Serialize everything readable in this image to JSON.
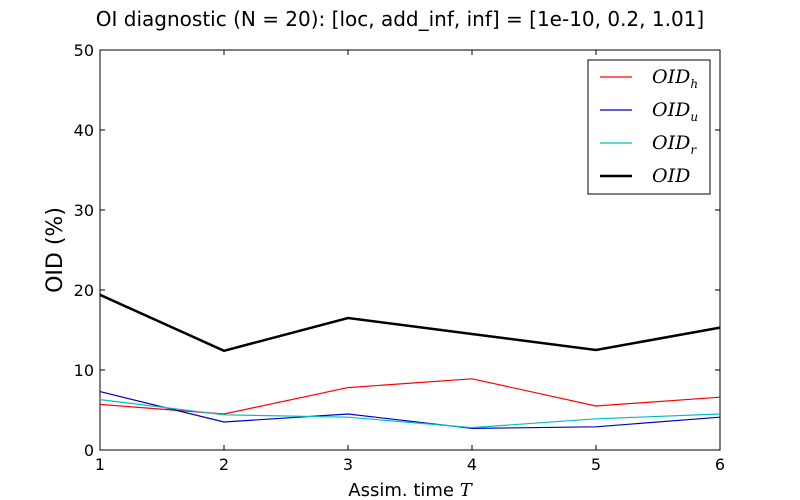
{
  "chart_data": {
    "type": "line",
    "title": "OI diagnostic  (N = 20): [loc, add_inf, inf] = [1e-10, 0.2, 1.01]",
    "xlabel": "Assim. time",
    "xlabel_var": "T",
    "ylabel": "OID (%)",
    "x": [
      1,
      2,
      3,
      4,
      5,
      6
    ],
    "xlim": [
      1,
      6
    ],
    "ylim": [
      0,
      50
    ],
    "xticks": [
      "1",
      "2",
      "3",
      "4",
      "5",
      "6"
    ],
    "yticks": [
      "0",
      "10",
      "20",
      "30",
      "40",
      "50"
    ],
    "grid": false,
    "legend_position": "top-right",
    "series": [
      {
        "name": "OID",
        "subscript": "h",
        "color": "#ff0000",
        "width": 1.2,
        "values": [
          5.7,
          4.5,
          7.8,
          8.9,
          5.5,
          6.6
        ]
      },
      {
        "name": "OID",
        "subscript": "u",
        "color": "#0000cc",
        "width": 1.2,
        "values": [
          7.3,
          3.5,
          4.5,
          2.7,
          2.9,
          4.1
        ]
      },
      {
        "name": "OID",
        "subscript": "r",
        "color": "#00bfbf",
        "width": 1.2,
        "values": [
          6.3,
          4.4,
          4.1,
          2.8,
          3.9,
          4.5
        ]
      },
      {
        "name": "OID",
        "subscript": "",
        "color": "#000000",
        "width": 2.5,
        "values": [
          19.4,
          12.4,
          16.5,
          14.5,
          12.5,
          15.3
        ]
      }
    ]
  }
}
